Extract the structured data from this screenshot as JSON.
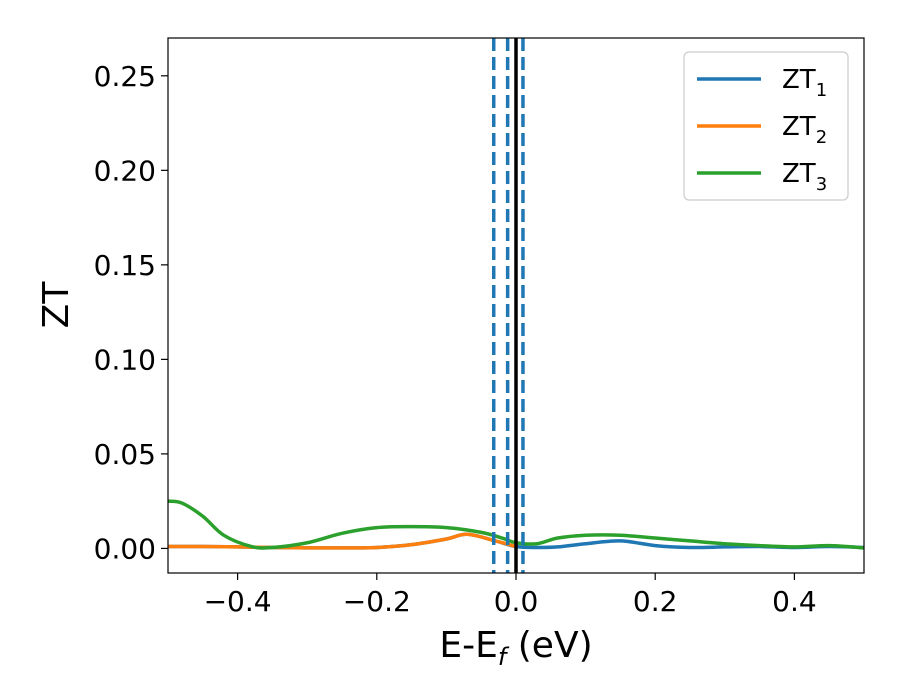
{
  "chart_data": {
    "type": "line",
    "xlabel_main": "E-E",
    "xlabel_sub": "f",
    "xlabel_unit": " (eV)",
    "ylabel": "ZT",
    "xlim": [
      -0.5,
      0.5
    ],
    "ylim": [
      -0.013,
      0.27
    ],
    "xticks": [
      -0.4,
      -0.2,
      0.0,
      0.2,
      0.4
    ],
    "xtick_labels": [
      "−0.4",
      "−0.2",
      "0.0",
      "0.2",
      "0.4"
    ],
    "yticks": [
      0.0,
      0.05,
      0.1,
      0.15,
      0.2,
      0.25
    ],
    "ytick_labels": [
      "0.00",
      "0.05",
      "0.10",
      "0.15",
      "0.20",
      "0.25"
    ],
    "legend_position": "top-right",
    "grid": false,
    "series": [
      {
        "name_main": "ZT",
        "name_sub": "1",
        "color": "#1f77b4",
        "x": [
          -0.5,
          -0.45,
          -0.4,
          -0.35,
          -0.3,
          -0.25,
          -0.2,
          -0.15,
          -0.1,
          -0.07,
          -0.03,
          0.0,
          0.03,
          0.06,
          0.1,
          0.15,
          0.2,
          0.25,
          0.3,
          0.35,
          0.4,
          0.45,
          0.5
        ],
        "y": [
          0.001,
          0.001,
          0.0008,
          0.0005,
          0.0003,
          0.0003,
          0.0005,
          0.002,
          0.005,
          0.0075,
          0.004,
          0.001,
          0.0005,
          0.0008,
          0.0025,
          0.004,
          0.0015,
          0.0005,
          0.0008,
          0.001,
          0.0005,
          0.001,
          0.0005
        ]
      },
      {
        "name_main": "ZT",
        "name_sub": "2",
        "color": "#ff7f0e",
        "x": [
          -0.5,
          -0.45,
          -0.4,
          -0.35,
          -0.3,
          -0.25,
          -0.2,
          -0.15,
          -0.1,
          -0.07,
          -0.03,
          0.0
        ],
        "y": [
          0.001,
          0.001,
          0.0008,
          0.0005,
          0.0003,
          0.0003,
          0.0005,
          0.002,
          0.005,
          0.0075,
          0.004,
          0.001
        ]
      },
      {
        "name_main": "ZT",
        "name_sub": "3",
        "color": "#2ca02c",
        "x": [
          -0.5,
          -0.48,
          -0.45,
          -0.42,
          -0.38,
          -0.35,
          -0.3,
          -0.25,
          -0.2,
          -0.15,
          -0.1,
          -0.05,
          -0.02,
          0.0,
          0.03,
          0.06,
          0.1,
          0.15,
          0.2,
          0.25,
          0.3,
          0.35,
          0.4,
          0.45,
          0.5
        ],
        "y": [
          0.025,
          0.024,
          0.017,
          0.007,
          0.001,
          0.0005,
          0.003,
          0.008,
          0.011,
          0.0115,
          0.011,
          0.0085,
          0.0055,
          0.003,
          0.0025,
          0.0055,
          0.007,
          0.007,
          0.0055,
          0.004,
          0.0025,
          0.0015,
          0.0008,
          0.0015,
          0.0003
        ]
      }
    ],
    "vlines": [
      {
        "x": 0.0,
        "style": "solid",
        "color": "#000000"
      },
      {
        "x": -0.032,
        "style": "dashed",
        "color": "#1f77b4"
      },
      {
        "x": -0.012,
        "style": "dashed",
        "color": "#1f77b4"
      },
      {
        "x": 0.01,
        "style": "dashed",
        "color": "#1f77b4"
      }
    ]
  }
}
